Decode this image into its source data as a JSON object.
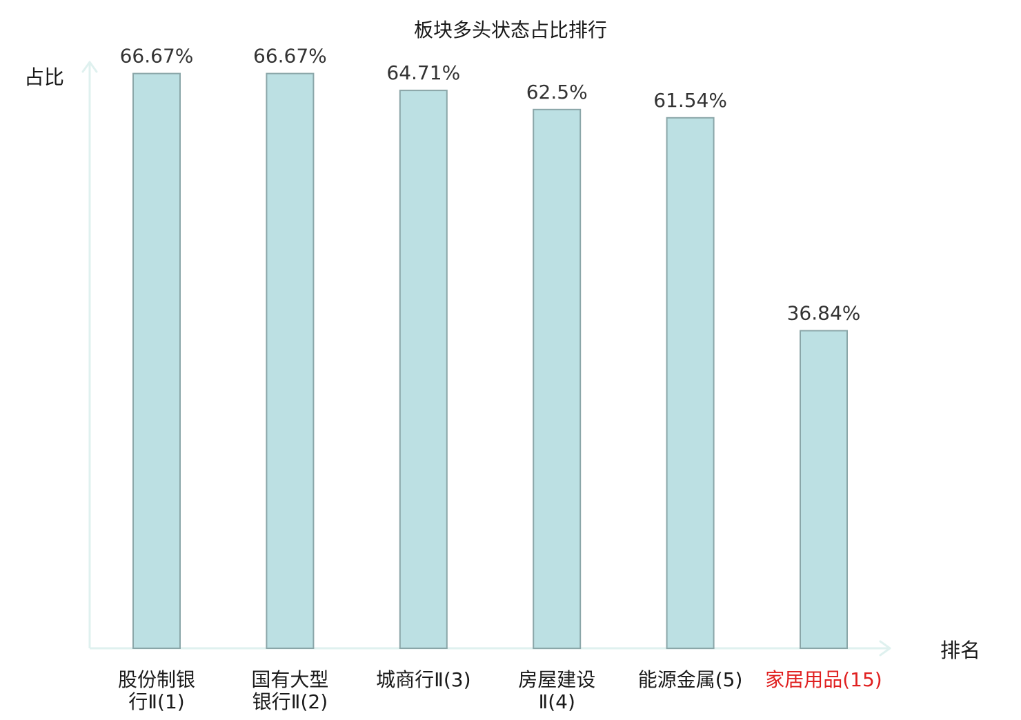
{
  "colors": {
    "bar_fill": "#bce0e3",
    "bar_stroke": "#8aa6a8",
    "axis": "#dff1ef",
    "text": "#1a1a1a",
    "value_label": "#333333",
    "highlight": "#e02020"
  },
  "chart_data": {
    "type": "bar",
    "title": "板块多头状态占比排行",
    "xlabel": "排名",
    "ylabel": "占比",
    "grid": false,
    "ylim": [
      0,
      80
    ],
    "categories": [
      "股份制银行Ⅱ(1)",
      "国有大型银行Ⅱ(2)",
      "城商行Ⅱ(3)",
      "房屋建设Ⅱ(4)",
      "能源金属(5)",
      "家居用品(15)"
    ],
    "category_label_lines": [
      [
        "股份制银",
        "行Ⅱ(1)"
      ],
      [
        "国有大型",
        "银行Ⅱ(2)"
      ],
      [
        "城商行Ⅱ(3)"
      ],
      [
        "房屋建设",
        "Ⅱ(4)"
      ],
      [
        "能源金属(5)"
      ],
      [
        "家居用品(15)"
      ]
    ],
    "highlighted_category": "家居用品(15)",
    "values": [
      66.67,
      66.67,
      64.71,
      62.5,
      61.54,
      36.84
    ],
    "value_labels": [
      "66.67%",
      "66.67%",
      "64.71%",
      "62.5%",
      "61.54%",
      "36.84%"
    ]
  }
}
